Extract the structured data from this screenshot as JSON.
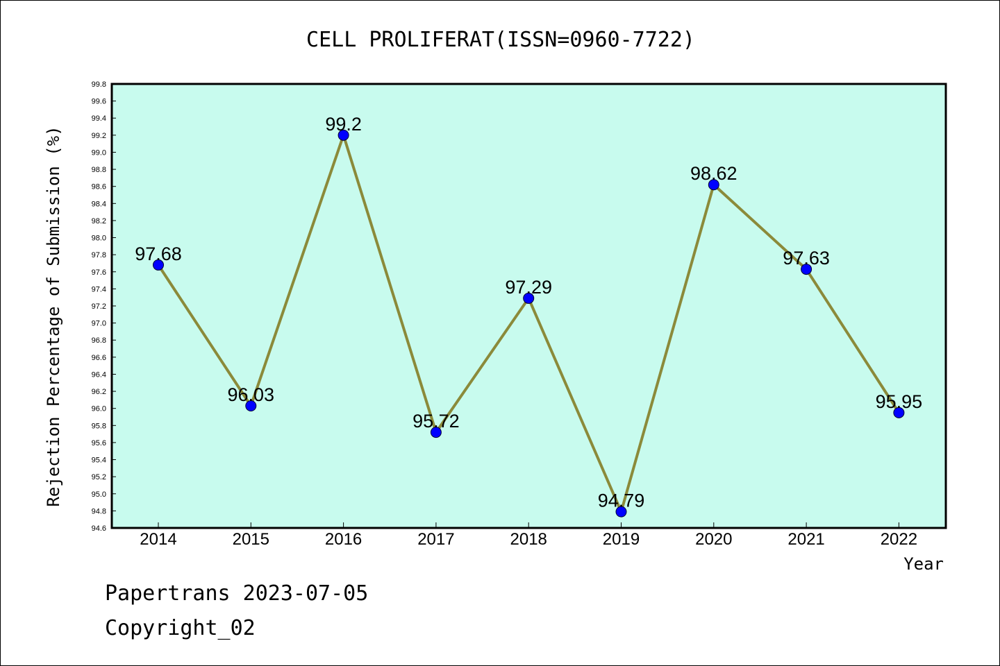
{
  "chart_data": {
    "type": "line",
    "title": "CELL PROLIFERAT(ISSN=0960-7722)",
    "xlabel": "Year",
    "ylabel": "Rejection Percentage of Submission (%)",
    "categories": [
      "2014",
      "2015",
      "2016",
      "2017",
      "2018",
      "2019",
      "2020",
      "2021",
      "2022"
    ],
    "values": [
      97.68,
      96.03,
      99.2,
      95.72,
      97.29,
      94.79,
      98.62,
      97.63,
      95.95
    ],
    "data_labels": [
      "97.68",
      "96.03",
      "99.2",
      "95.72",
      "97.29",
      "94.79",
      "98.62",
      "97.63",
      "95.95"
    ],
    "ylim": [
      94.6,
      99.8
    ],
    "yticks": [
      "94.6",
      "94.8",
      "95.0",
      "95.2",
      "95.4",
      "95.6",
      "95.8",
      "96.0",
      "96.2",
      "96.4",
      "96.6",
      "96.8",
      "97.0",
      "97.2",
      "97.4",
      "97.6",
      "97.8",
      "98.0",
      "98.2",
      "98.4",
      "98.6",
      "98.8",
      "99.0",
      "99.2",
      "99.4",
      "99.6",
      "99.8"
    ],
    "grid": false,
    "colors": {
      "plot_background": "#c8fbee",
      "line": "#8b8a3a",
      "marker": "#0000ff"
    }
  },
  "footer": {
    "line1": "Papertrans 2023-07-05",
    "line2": "Copyright_02"
  }
}
